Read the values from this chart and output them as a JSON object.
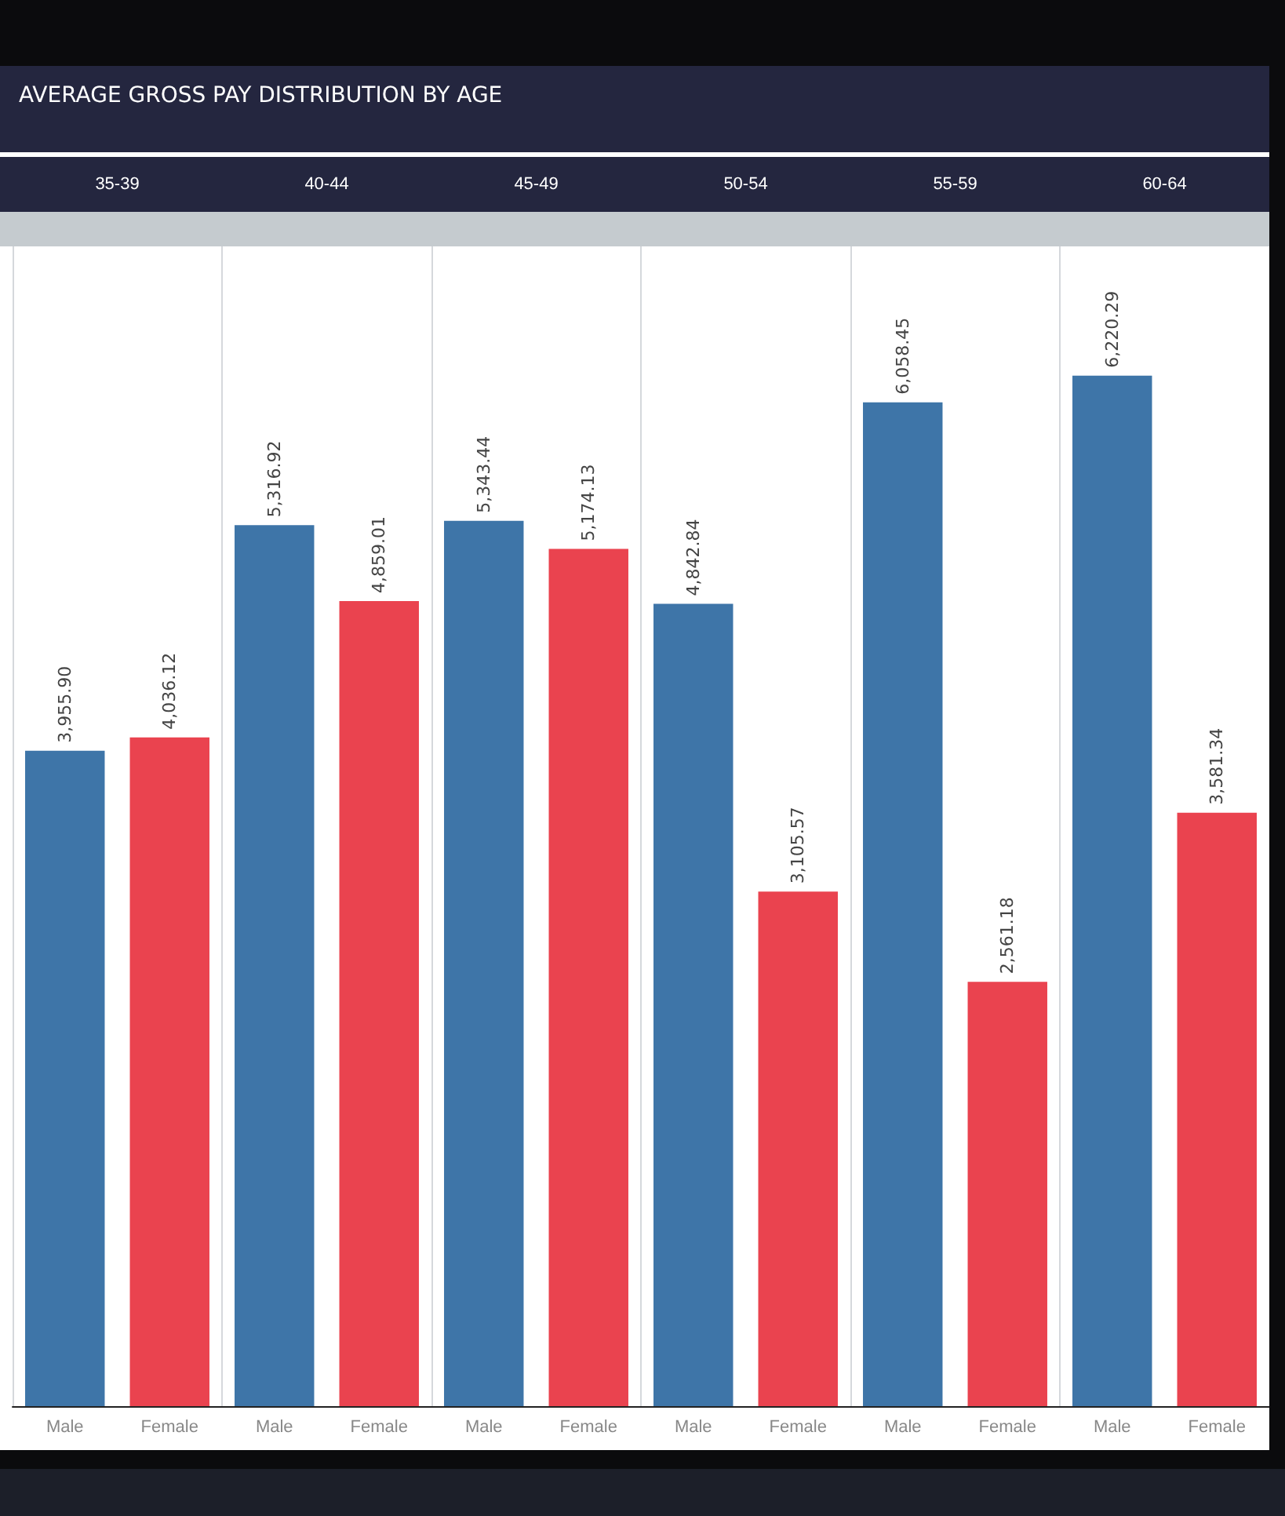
{
  "chart_data": {
    "type": "bar",
    "title": "AVERAGE GROSS PAY DISTRIBUTION BY AGE",
    "categories": [
      "35-39",
      "40-44",
      "45-49",
      "50-54",
      "55-59",
      "60-64"
    ],
    "series": [
      {
        "name": "Male",
        "color": "#3e75a8",
        "values": [
          3955.9,
          5316.92,
          5343.44,
          4842.84,
          6058.45,
          6220.29
        ],
        "value_labels": [
          "3,955.90",
          "5,316.92",
          "5,343.44",
          "4,842.84",
          "6,058.45",
          "6,220.29"
        ]
      },
      {
        "name": "Female",
        "color": "#ea434f",
        "values": [
          4036.12,
          4859.01,
          5174.13,
          3105.57,
          2561.18,
          3581.34
        ],
        "value_labels": [
          "4,036.12",
          "4,859.01",
          "5,174.13",
          "3,105.57",
          "2,561.18",
          "3,581.34"
        ]
      }
    ],
    "grid": "x",
    "legend": false
  }
}
